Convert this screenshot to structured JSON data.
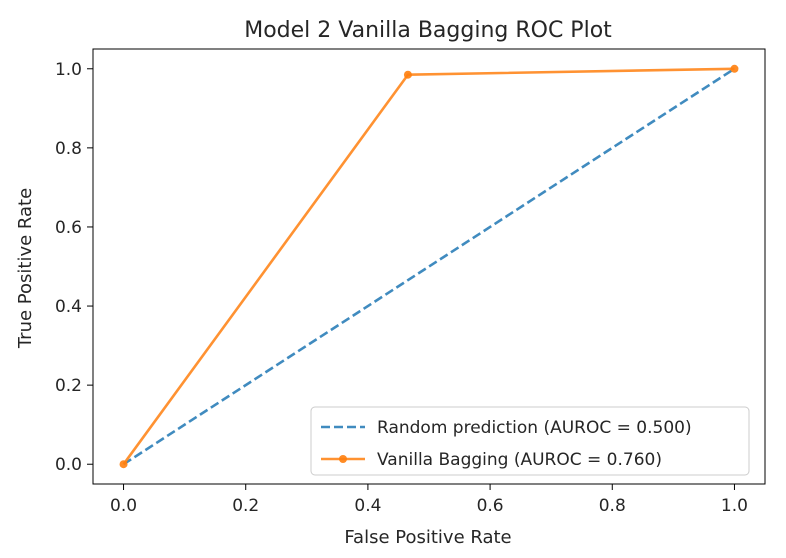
{
  "chart_data": {
    "type": "line",
    "title": "Model 2 Vanilla Bagging ROC Plot",
    "xlabel": "False Positive Rate",
    "ylabel": "True Positive Rate",
    "xlim": [
      -0.05,
      1.05
    ],
    "ylim": [
      -0.05,
      1.05
    ],
    "xticks": [
      0.0,
      0.2,
      0.4,
      0.6,
      0.8,
      1.0
    ],
    "yticks": [
      0.0,
      0.2,
      0.4,
      0.6,
      0.8,
      1.0
    ],
    "xtick_labels": [
      "0.0",
      "0.2",
      "0.4",
      "0.6",
      "0.8",
      "1.0"
    ],
    "ytick_labels": [
      "0.0",
      "0.2",
      "0.4",
      "0.6",
      "0.8",
      "1.0"
    ],
    "grid": false,
    "legend_position": "bottom-right",
    "series": [
      {
        "name": "Random prediction (AUROC = 0.500)",
        "color": "#1f77b4",
        "style": "dashed",
        "marker": "none",
        "x": [
          0.0,
          1.0
        ],
        "y": [
          0.0,
          1.0
        ]
      },
      {
        "name": "Vanilla Bagging (AUROC = 0.760)",
        "color": "#ff7f0e",
        "style": "solid",
        "marker": "circle",
        "x": [
          0.0,
          0.4655,
          1.0
        ],
        "y": [
          0.0,
          0.985,
          1.0
        ]
      }
    ]
  }
}
